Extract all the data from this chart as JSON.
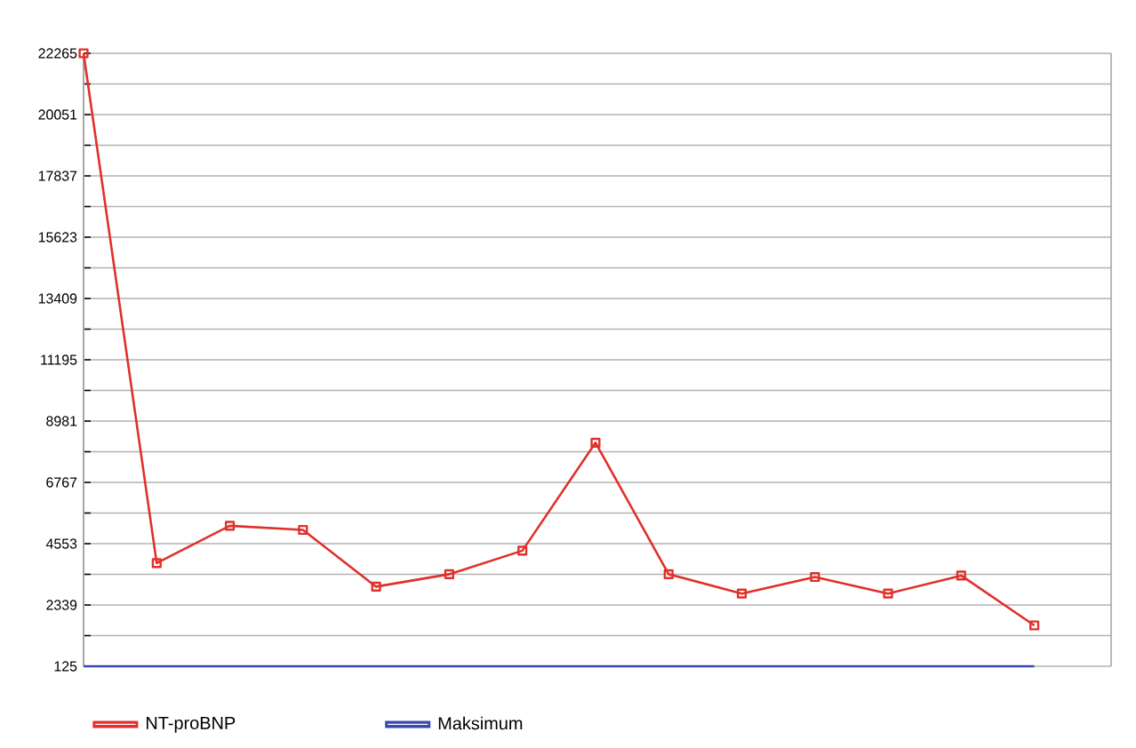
{
  "chart_data": {
    "type": "line",
    "categories": [
      null,
      null,
      null,
      null,
      null,
      null,
      null,
      null,
      null,
      null,
      null,
      null,
      null,
      null
    ],
    "series": [
      {
        "name": "NT-proBNP",
        "color": "#e0302a",
        "line_style": "solid",
        "marker": "square",
        "values": [
          22265,
          3850,
          5200,
          5050,
          3000,
          3450,
          4300,
          8200,
          3450,
          2750,
          3350,
          2750,
          3400,
          1600
        ]
      },
      {
        "name": "Maksimum",
        "color": "#3b47b0",
        "line_style": "solid",
        "marker": "none",
        "values": [
          125,
          125,
          125,
          125,
          125,
          125,
          125,
          125,
          125,
          125,
          125,
          125,
          125,
          125
        ]
      }
    ],
    "ylim": [
      125,
      22265
    ],
    "yticks": [
      125,
      {
        "value": 1232,
        "label": null
      },
      2339,
      {
        "value": 3446,
        "label": null
      },
      4553,
      {
        "value": 5660,
        "label": null
      },
      6767,
      {
        "value": 7874,
        "label": null
      },
      8981,
      {
        "value": 10088,
        "label": null
      },
      11195,
      {
        "value": 12302,
        "label": null
      },
      13409,
      {
        "value": 14516,
        "label": null
      },
      15623,
      {
        "value": 16730,
        "label": null
      },
      17837,
      {
        "value": 18944,
        "label": null
      },
      20051,
      {
        "value": 21158,
        "label": null
      },
      22265
    ],
    "grid": "y",
    "legend": "bottom left"
  }
}
